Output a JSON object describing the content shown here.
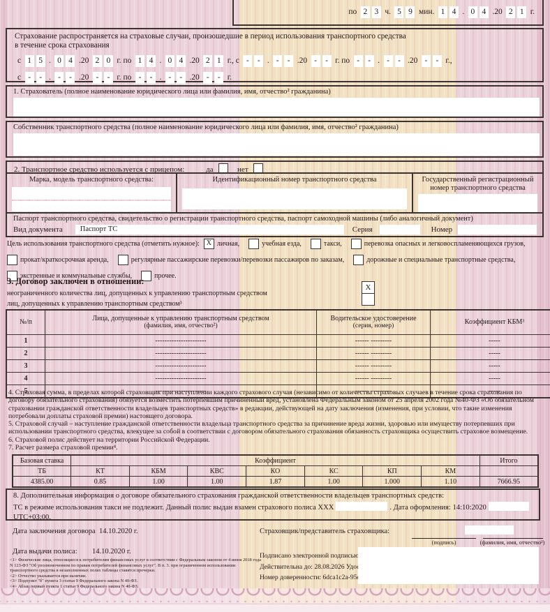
{
  "colors": {
    "pink_background": "#ecd2db",
    "beige_band": "#f3e1c4",
    "border": "#3a3330",
    "text": "#241817",
    "field_white": "#ffffff",
    "lace_pink": "#d5a2bd"
  },
  "top_box": {
    "segments": [
      {
        "t": "l",
        "v": "по"
      },
      {
        "t": "c",
        "v": "2"
      },
      {
        "t": "c",
        "v": "3"
      },
      {
        "t": "l",
        "v": "ч."
      },
      {
        "t": "c",
        "v": "5"
      },
      {
        "t": "c",
        "v": "9"
      },
      {
        "t": "l",
        "v": "мин."
      },
      {
        "t": "c",
        "v": "1"
      },
      {
        "t": "c",
        "v": "4"
      },
      {
        "t": "l",
        "v": "."
      },
      {
        "t": "c",
        "v": "0"
      },
      {
        "t": "c",
        "v": "4"
      },
      {
        "t": "l",
        "v": ".20"
      },
      {
        "t": "c",
        "v": "2"
      },
      {
        "t": "c",
        "v": "1"
      },
      {
        "t": "l",
        "v": "г."
      }
    ]
  },
  "period": {
    "line1": "Страхование распространяется на страховые случаи, произошедшие в период использования транспортного средства",
    "line2": "в течение срока страхования",
    "rows": [
      [
        {
          "t": "l",
          "v": "с"
        },
        {
          "t": "c",
          "v": "1"
        },
        {
          "t": "c",
          "v": "5"
        },
        {
          "t": "l",
          "v": "."
        },
        {
          "t": "c",
          "v": "0"
        },
        {
          "t": "c",
          "v": "4"
        },
        {
          "t": "l",
          "v": ".20"
        },
        {
          "t": "c",
          "v": "2"
        },
        {
          "t": "c",
          "v": "0"
        },
        {
          "t": "l",
          "v": "г. по"
        },
        {
          "t": "c",
          "v": "1"
        },
        {
          "t": "c",
          "v": "4"
        },
        {
          "t": "l",
          "v": "."
        },
        {
          "t": "c",
          "v": "0"
        },
        {
          "t": "c",
          "v": "4"
        },
        {
          "t": "l",
          "v": ".20"
        },
        {
          "t": "c",
          "v": "2"
        },
        {
          "t": "c",
          "v": "1"
        },
        {
          "t": "l",
          "v": "г., с"
        },
        {
          "t": "c",
          "v": "-"
        },
        {
          "t": "c",
          "v": "-"
        },
        {
          "t": "l",
          "v": "."
        },
        {
          "t": "c",
          "v": "-"
        },
        {
          "t": "c",
          "v": "-"
        },
        {
          "t": "l",
          "v": ".20"
        },
        {
          "t": "c",
          "v": "-"
        },
        {
          "t": "c",
          "v": "-"
        },
        {
          "t": "l",
          "v": "г. по"
        },
        {
          "t": "c",
          "v": "-"
        },
        {
          "t": "c",
          "v": "-"
        },
        {
          "t": "l",
          "v": "."
        },
        {
          "t": "c",
          "v": "-"
        },
        {
          "t": "c",
          "v": "-"
        },
        {
          "t": "l",
          "v": ".20"
        },
        {
          "t": "c",
          "v": "-"
        },
        {
          "t": "c",
          "v": "-"
        },
        {
          "t": "l",
          "v": "г.,"
        }
      ],
      [
        {
          "t": "l",
          "v": "с"
        },
        {
          "t": "c",
          "v": "-"
        },
        {
          "t": "c",
          "v": "-"
        },
        {
          "t": "l",
          "v": "."
        },
        {
          "t": "c",
          "v": "-"
        },
        {
          "t": "c",
          "v": "-"
        },
        {
          "t": "l",
          "v": ".20"
        },
        {
          "t": "c",
          "v": "-"
        },
        {
          "t": "c",
          "v": "-"
        },
        {
          "t": "l",
          "v": "г. по"
        },
        {
          "t": "c",
          "v": "-"
        },
        {
          "t": "c",
          "v": "-"
        },
        {
          "t": "l",
          "v": "."
        },
        {
          "t": "c",
          "v": "-"
        },
        {
          "t": "c",
          "v": "-"
        },
        {
          "t": "l",
          "v": ".20"
        },
        {
          "t": "c",
          "v": "-"
        },
        {
          "t": "c",
          "v": "-"
        },
        {
          "t": "l",
          "v": "г."
        }
      ]
    ]
  },
  "insured": {
    "label": "1. Страхователь (полное наименование юридического лица или фамилия, имя, отчество² гражданина)"
  },
  "owner": {
    "label": "Собственник транспортного средства (полное наименование юридического лица или фамилия, имя, отчество² гражданина)"
  },
  "trailer": {
    "label": "2. Транспортное средство используется с прицепом:",
    "yes_label": "да",
    "no_label": "нет"
  },
  "vehicle": {
    "col1_label": "Марка, модель транспортного средства:",
    "col2_label": "Идентификационный номер транспортного средства",
    "col3_label": "Государственный регистрационный номер транспортного средства"
  },
  "pts": {
    "title": "Паспорт транспортного средства, свидетельство о регистрации транспортного средства, паспорт самоходной машины (либо аналогичный документ)",
    "doc_type_label": "Вид документа",
    "doc_type_value": "Паспорт ТС",
    "series_label": "Серия",
    "number_label": "Номер"
  },
  "purpose": {
    "lines": [
      [
        {
          "t": "text",
          "v": "Цель использования транспортного средства (отметить нужное):"
        },
        {
          "t": "cb",
          "checked": true,
          "label": "личная,"
        },
        {
          "t": "cb",
          "checked": false,
          "label": "учебная езда,"
        },
        {
          "t": "cb",
          "checked": false,
          "label": "такси,"
        },
        {
          "t": "cb",
          "checked": false,
          "label": "перевозка опасных и легковоспламеняющихся грузов,"
        }
      ],
      [
        {
          "t": "cb",
          "checked": false,
          "label": "прокат/краткосрочная аренда,"
        },
        {
          "t": "cb",
          "checked": false,
          "label": "регулярные пассажирские перевозки/перевозки пассажиров по заказам,"
        },
        {
          "t": "cb",
          "checked": false,
          "label": "дорожные и специальные транспортные средства,"
        }
      ],
      [
        {
          "t": "cb",
          "checked": false,
          "label": "экстренные и коммунальные службы,"
        },
        {
          "t": "cb",
          "checked": false,
          "label": "прочее."
        }
      ]
    ]
  },
  "section3": {
    "title": "3. Договор заключен в отношении:",
    "option_unlimited": "неограниченного количества лиц, допущенных к управлению транспортным средством",
    "option_limited": "лиц, допущенных к управлению транспортным средством³",
    "unlimited_mark": "X"
  },
  "drivers_table": {
    "columns": [
      {
        "title": "№/п",
        "sub": ""
      },
      {
        "title": "Лица, допущенные к управлению транспортным средством",
        "sub": "(фамилия, имя, отчество²)"
      },
      {
        "title": "Водительское удостоверение",
        "sub": "(серия, номер)"
      },
      {
        "title": "Коэффициент КБМ³",
        "sub": ""
      }
    ],
    "rows": [
      [
        "1",
        "----------------------",
        "------ ---------",
        "-----"
      ],
      [
        "2",
        "----------------------",
        "------ ---------",
        "-----"
      ],
      [
        "3",
        "----------------------",
        "------ ---------",
        "-----"
      ],
      [
        "4",
        "----------------------",
        "------ ---------",
        "-----"
      ],
      [
        "5",
        "----------------------",
        "------ ---------",
        "-----"
      ]
    ]
  },
  "legal_paragraphs": [
    "4. Страховая сумма, в пределах которой страховщик при наступлении каждого страхового случая (независимо от количества страховых случаев в течение срока страхования по договору обязательного страхования) обязуется возместить потерпевшим причиненный вред, установлена Федеральным законом от 25 апреля 2002 года №40-ФЗ «Об обязательном страховании гражданской ответственности владельцев транспортных средств» в редакции, действующей на дату заключения (изменения, при условии, что такие изменения потребовали доплаты страховой премии) настоящего договора.",
    "5. Страховой случай – наступление гражданской ответственности владельца транспортного средства за причинение вреда жизни, здоровью или имуществу потерпевших при использовании транспортного средства, влекущее за собой в соответствии с договором обязательного страхования обязанность страховщика осуществить страховое возмещение.",
    "6. Страховой полис действует на территории Российской Федерации.",
    "7. Расчет размера страховой премии⁴."
  ],
  "premium_table": {
    "base_rate_label": "Базовая ставка",
    "coefficient_label": "Коэффициент",
    "total_label": "Итого",
    "subheaders": [
      "ТБ",
      "КТ",
      "КБМ",
      "КВС",
      "КО",
      "КС",
      "КП",
      "КМ"
    ],
    "values": [
      "4385.00",
      "0.85",
      "1.00",
      "1.00",
      "1.87",
      "1.00",
      "1.000",
      "1.10"
    ],
    "total_value": "7666.95"
  },
  "section8": {
    "title": "8. Дополнительная информация о договоре обязательного страхования гражданской ответственности владельцев транспортных средств:",
    "line2_part1": "ТС в режиме использования такси не подлежит. Данный полис выдан взамен страхового полиса XXX",
    "line2_part2": ". Дата оформления: 14:10:2020",
    "line3": "UTC+03:00."
  },
  "dates": {
    "conclusion_label": "Дата заключения договора",
    "conclusion_value": "14.10.2020 г.",
    "issue_label": "Дата выдачи полиса:",
    "issue_value": "14.10.2020 г."
  },
  "signature": {
    "insurer_label": "Страховщик/представитель страховщика:",
    "sign_caption": "(подпись)",
    "name_caption": "(фамилия, имя, отчество²)"
  },
  "esignature": {
    "lines": [
      "Подписано электронной подписью: 83",
      "Действительна до: 28.08.2026 Удостов",
      "Номер доверенности: 6dca1c2a-95d2-4"
    ]
  },
  "footnotes": [
    "<1> Физические лица, относящиеся к потребителям финансовых услуг в соответствии с Федеральным законом от 4 июня 2018 года N 123-ФЗ \"Об уполномоченном по правам потребителей финансовых услуг\". В п. 3. при ограниченном использовании транспортного средства в незаполненных полях таблицы ставятся прочерки.",
    "<2> Отчество указывается при наличии.",
    "<3> Подпункт \"б\" пункта 3 статьи 9 Федерального закона N 40-ФЗ.",
    "<4> Абзац первый пункта 1 статьи 9 Федерального закона N 40-ФЗ."
  ]
}
